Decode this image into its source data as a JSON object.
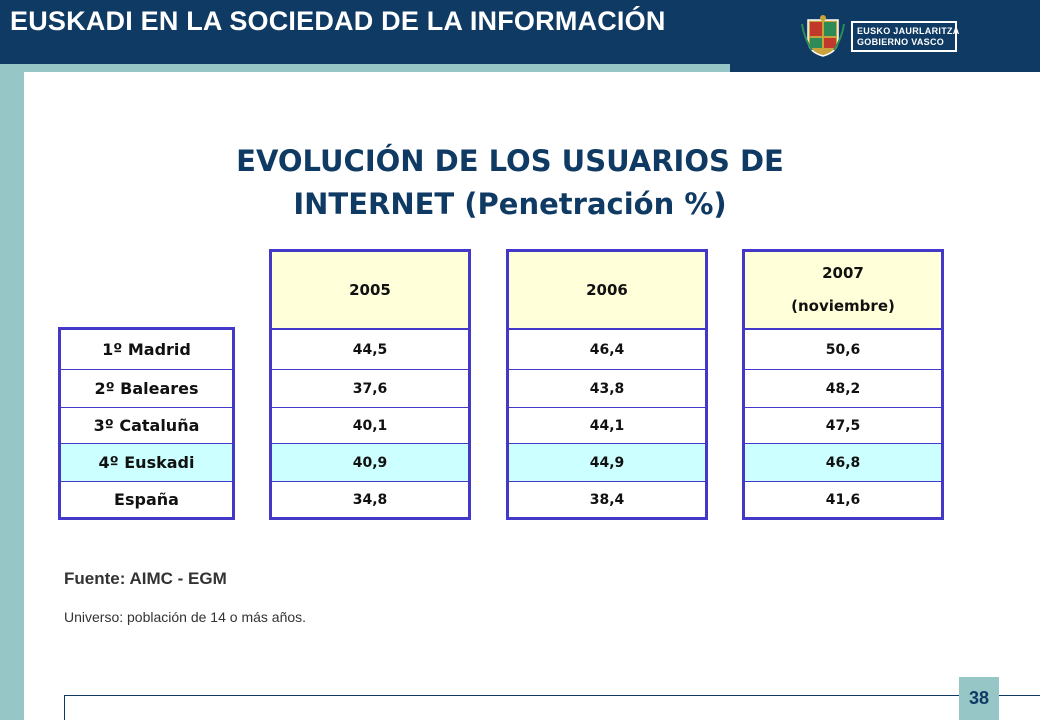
{
  "header": {
    "title": "EUSKADI EN LA SOCIEDAD DE LA INFORMACIÓN",
    "logo_line1": "EUSKO JAURLARITZA",
    "logo_line2": "GOBIERNO VASCO"
  },
  "slide": {
    "title_line1": "EVOLUCIÓN DE LOS USUARIOS DE",
    "title_line2": "INTERNET (Penetración %)"
  },
  "table": {
    "regions": [
      "1º Madrid",
      "2º Baleares",
      "3º Cataluña",
      "4º Euskadi",
      "España"
    ],
    "highlight_row": 3,
    "columns": [
      {
        "header": "2005",
        "header_sub": "",
        "values": [
          "44,5",
          "37,6",
          "40,1",
          "40,9",
          "34,8"
        ]
      },
      {
        "header": "2006",
        "header_sub": "",
        "values": [
          "46,4",
          "43,8",
          "44,1",
          "44,9",
          "38,4"
        ]
      },
      {
        "header": "2007",
        "header_sub": "(noviembre)",
        "values": [
          "50,6",
          "48,2",
          "47,5",
          "46,8",
          "41,6"
        ]
      }
    ]
  },
  "footer": {
    "source": "Fuente: AIMC - EGM",
    "universe": "Universo: población de 14 o más años.",
    "page_number": "38"
  },
  "colors": {
    "header_bg": "#0f3a63",
    "accent_teal": "#97c6c6",
    "table_border": "#4438c8",
    "header_cell_bg": "#ffffd9",
    "highlight_bg": "#ccffff"
  }
}
